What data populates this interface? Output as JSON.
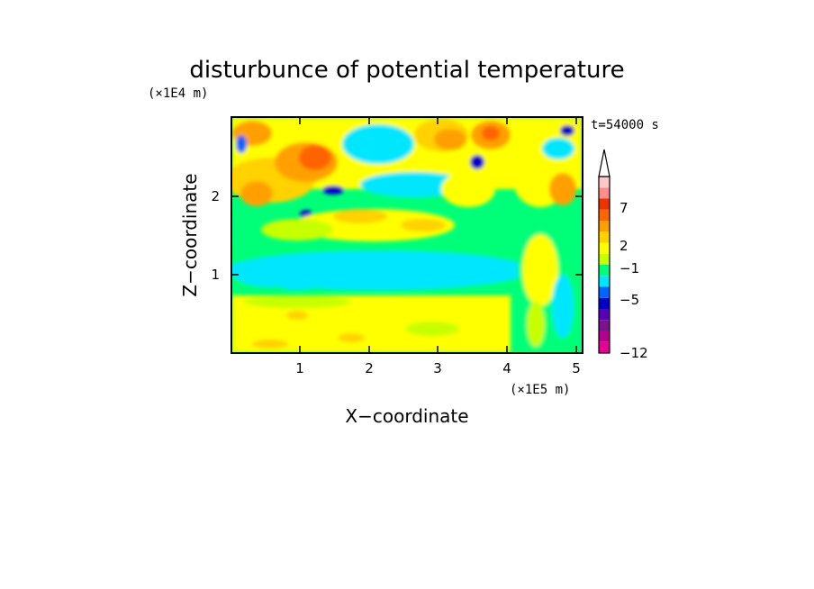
{
  "chart_data": {
    "type": "heatmap",
    "title": "disturbunce of potential temperature",
    "xlabel": "X−coordinate",
    "ylabel": "Z−coordinate",
    "x_scale_label": "(×1E5 m)",
    "y_scale_label": "(×1E4 m)",
    "time_label": "t=54000 s",
    "x_ticks": [
      "1",
      "2",
      "3",
      "4",
      "5"
    ],
    "y_ticks": [
      "1",
      "2"
    ],
    "xlim": [
      0,
      5.12
    ],
    "ylim": [
      0,
      2.98
    ],
    "colorbar": {
      "tick_labels": [
        "−12",
        "−5",
        "−1",
        "2",
        "7"
      ],
      "colors": [
        "#e60096",
        "#b4008c",
        "#78148c",
        "#5a00b4",
        "#0000c8",
        "#0064ff",
        "#00e6ff",
        "#00ff78",
        "#c8ff00",
        "#ffff00",
        "#ffd200",
        "#ffa000",
        "#ff6400",
        "#f03200",
        "#ff8c8c",
        "#ffc8c8"
      ],
      "extend_max": true
    },
    "notes": "Contour field: yellow/orange band near surface (0-0.7), cyan cold band ~1.0, yellow band ~1.5, orange/red wave cells with blue pockets in upper layer (2-3), strong wave train near x=4.5-5."
  },
  "colors": {
    "background": "#ffffff",
    "axis": "#000000"
  }
}
